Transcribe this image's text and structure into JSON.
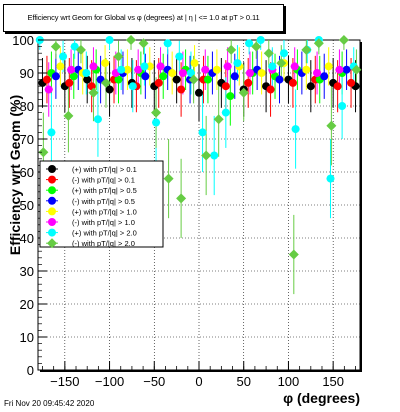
{
  "title": "Efficiency wrt Geom for Global vs φ (degrees) at | η | <= 1.0 at pT > 0.11",
  "footer": "Fri Nov 20 09:45:42 2020",
  "chart_data": {
    "type": "scatter",
    "title": "Efficiency wrt Geom for Global vs φ (degrees) at | η | <= 1.0 at pT > 0.11",
    "xlabel": "φ (degrees)",
    "ylabel": "Efficiency wrt Geom (%)",
    "xlim": [
      -180,
      180
    ],
    "ylim": [
      0,
      100
    ],
    "x_ticks": [
      -150,
      -100,
      -50,
      0,
      50,
      100,
      150
    ],
    "y_ticks": [
      0,
      10,
      20,
      30,
      40,
      50,
      60,
      70,
      80,
      90,
      100
    ],
    "grid": true,
    "legend_position": "left-middle",
    "series": [
      {
        "name": "(+) with pT/|q| > 0.1",
        "color": "#000000",
        "marker": "circle",
        "x": [
          -175,
          -150,
          -125,
          -100,
          -75,
          -50,
          -25,
          0,
          25,
          50,
          75,
          100,
          125,
          150,
          175
        ],
        "y": [
          87,
          86,
          88,
          85,
          87,
          86,
          88,
          84,
          87,
          85,
          86,
          88,
          86,
          87,
          86
        ]
      },
      {
        "name": "(-) with pT/|q| > 0.1",
        "color": "#ff0000",
        "marker": "circle",
        "x": [
          -170,
          -145,
          -120,
          -95,
          -70,
          -45,
          -20,
          5,
          30,
          55,
          80,
          105,
          130,
          155,
          170
        ],
        "y": [
          88,
          87,
          86,
          88,
          86,
          87,
          85,
          88,
          86,
          87,
          85,
          87,
          88,
          86,
          87
        ]
      },
      {
        "name": "(+) with pT/|q| > 0.5",
        "color": "#00ff00",
        "marker": "circle",
        "x": [
          -165,
          -140,
          -115,
          -90,
          -65,
          -40,
          -15,
          10,
          35,
          60,
          85,
          110,
          135,
          160
        ],
        "y": [
          90,
          89,
          91,
          88,
          90,
          89,
          91,
          88,
          83,
          90,
          89,
          91,
          88,
          90
        ]
      },
      {
        "name": "(-) with pT/|q| > 0.5",
        "color": "#0000ff",
        "marker": "circle",
        "x": [
          -160,
          -135,
          -110,
          -85,
          -60,
          -35,
          -10,
          15,
          40,
          65,
          90,
          115,
          140,
          165
        ],
        "y": [
          89,
          91,
          88,
          90,
          89,
          91,
          88,
          90,
          89,
          91,
          88,
          90,
          89,
          91
        ]
      },
      {
        "name": "(+) with pT/|q| > 1.0",
        "color": "#ffff00",
        "marker": "circle",
        "x": [
          -155,
          -130,
          -105,
          -80,
          -55,
          -30,
          -5,
          20,
          45,
          70,
          95,
          120,
          145
        ],
        "y": [
          92,
          90,
          93,
          91,
          92,
          90,
          93,
          91,
          92,
          90,
          93,
          91,
          92
        ]
      },
      {
        "name": "(-) with pT/|q| > 1.0",
        "color": "#ff00ff",
        "marker": "circle",
        "x": [
          -168,
          -143,
          -118,
          -93,
          -68,
          -43,
          -18,
          7,
          32,
          57,
          82,
          107,
          132,
          157
        ],
        "y": [
          85,
          91,
          92,
          90,
          91,
          92,
          90,
          91,
          92,
          90,
          91,
          92,
          90,
          91
        ]
      },
      {
        "name": "(+) with pT/|q| > 2.0",
        "color": "#00ffff",
        "marker": "circle",
        "x": [
          -178,
          -165,
          -152,
          -139,
          -126,
          -113,
          -100,
          -87,
          -74,
          -61,
          -48,
          -35,
          -22,
          -9,
          4,
          17,
          30,
          43,
          56,
          69,
          82,
          95,
          108,
          121,
          134,
          147,
          160,
          173
        ],
        "y": [
          100,
          72,
          95,
          98,
          90,
          76,
          100,
          91,
          86,
          92,
          75,
          99,
          95,
          90,
          72,
          65,
          78,
          93,
          99,
          100,
          92,
          96,
          73,
          97,
          100,
          58,
          80,
          92
        ]
      },
      {
        "name": "(-) with pT/|q| > 2.0",
        "color": "#66cc44",
        "marker": "diamond",
        "x": [
          -174,
          -160,
          -146,
          -132,
          -118,
          -104,
          -90,
          -76,
          -62,
          -48,
          -34,
          -20,
          -6,
          8,
          22,
          36,
          50,
          64,
          78,
          92,
          106,
          120,
          134,
          148,
          162,
          176
        ],
        "y": [
          66,
          98,
          77,
          97,
          84,
          87,
          95,
          100,
          99,
          78,
          58,
          52,
          88,
          65,
          76,
          97,
          84,
          98,
          96,
          93,
          35,
          97,
          99,
          74,
          100,
          91
        ]
      }
    ]
  }
}
